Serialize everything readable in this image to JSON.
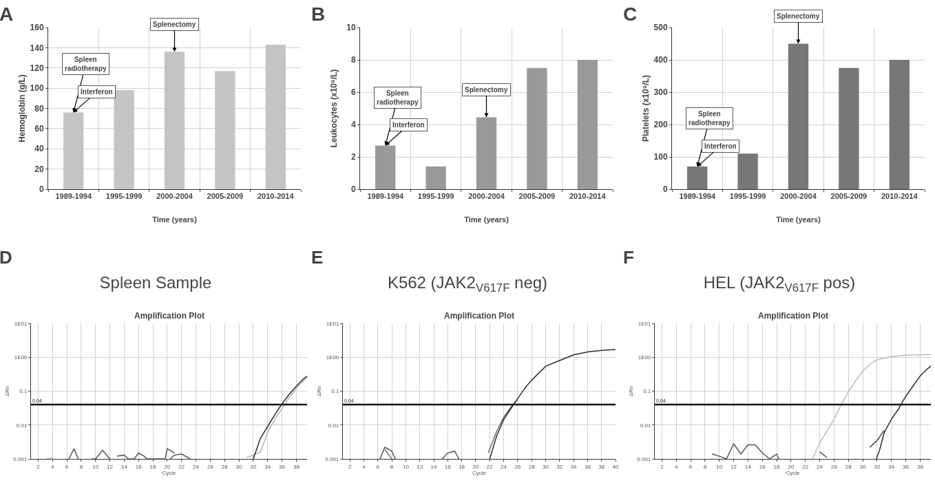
{
  "chart_data": [
    {
      "type": "bar",
      "ylabel": "Hemoglobin (g/L)",
      "xlabel": "Time (years)",
      "categories": [
        "1989-1994",
        "1995-1999",
        "2000-2004",
        "2005-2009",
        "2010-2014"
      ],
      "values": [
        76,
        98,
        136,
        117,
        143
      ],
      "color": "#c4c4c4",
      "ylim": [
        0,
        160
      ],
      "yticks": [
        0,
        20,
        40,
        60,
        80,
        100,
        120,
        140,
        160
      ],
      "grid": true,
      "annotations": [
        "A",
        {
          "text": "Spleen radiotherapy",
          "x": "1989-1994",
          "y": 76
        },
        {
          "text": "Interferon",
          "x": "1989-1994",
          "y": 76
        },
        {
          "text": "Splenectomy",
          "x": "2000-2004",
          "y": 136
        }
      ]
    },
    {
      "type": "bar",
      "ylabel": "Leukocytes (x10⁹/L)",
      "xlabel": "Time (years)",
      "categories": [
        "1989-1994",
        "1995-1999",
        "2000-2004",
        "2005-2009",
        "2010-2014"
      ],
      "values": [
        2.7,
        1.4,
        4.45,
        7.5,
        8
      ],
      "color": "#999999",
      "ylim": [
        0,
        10
      ],
      "yticks": [
        0,
        2,
        4,
        6,
        8,
        10
      ],
      "grid": true,
      "annotations": [
        "B",
        {
          "text": "Spleen radiotherapy",
          "x": "1989-1994",
          "y": 2.7
        },
        {
          "text": "Interferon",
          "x": "1989-1994",
          "y": 2.7
        },
        {
          "text": "Splenectomy",
          "x": "2000-2004",
          "y": 4.45
        }
      ]
    },
    {
      "type": "bar",
      "ylabel": "Platelets (x10⁹/L)",
      "xlabel": "Time (years)",
      "categories": [
        "1989-1994",
        "1995-1999",
        "2000-2004",
        "2005-2009",
        "2010-2014"
      ],
      "values": [
        70,
        110,
        450,
        375,
        400
      ],
      "color": "#777777",
      "ylim": [
        0,
        500
      ],
      "yticks": [
        0,
        100,
        200,
        300,
        400,
        500
      ],
      "grid": true,
      "annotations": [
        "C",
        {
          "text": "Spleen radiotherapy",
          "x": "1989-1994",
          "y": 70
        },
        {
          "text": "Interferon",
          "x": "1989-1994",
          "y": 70
        },
        {
          "text": "Splenectomy",
          "x": "2000-2004",
          "y": 450
        }
      ]
    },
    {
      "type": "line",
      "title": "Spleen Sample",
      "subtitle": "Amplification Plot",
      "xlabel": "Cycle",
      "ylabel": "ΔRn",
      "log": true,
      "grid": true,
      "annotations": [
        "D"
      ],
      "xlim": [
        1,
        39.5
      ],
      "xticks": [
        2,
        4,
        6,
        8,
        10,
        12,
        14,
        16,
        18,
        20,
        22,
        24,
        26,
        28,
        30,
        32,
        34,
        36,
        38
      ],
      "ylim": [
        0.001,
        10
      ],
      "yticks": [
        {
          "value": 0.001,
          "label": "0.001"
        },
        {
          "value": 0.01,
          "label": "0.01"
        },
        {
          "value": 0.1,
          "label": "0.1"
        },
        {
          "value": 1,
          "label": "1E00"
        },
        {
          "value": 10,
          "label": "1E01"
        }
      ],
      "ref_lines": [
        {
          "axis": "y",
          "value": 0.04,
          "label": "0.04",
          "color": "#111111"
        }
      ],
      "series": [
        {
          "color": "#555555",
          "x": [
            6.3,
            7,
            7.6,
            8,
            9.5,
            10,
            11,
            12,
            12.5,
            13,
            14,
            14.6,
            15.4,
            16,
            16.8,
            17.1,
            19.7,
            20,
            21
          ],
          "values": [
            0.001,
            0.002,
            0.001,
            null,
            0.001,
            0.001,
            0.0018,
            0.001,
            null,
            0.0012,
            0.0013,
            0.001,
            0.001,
            0.0015,
            0.0012,
            0.001,
            0.001,
            0.002,
            0.0015
          ]
        },
        {
          "color": "#555555",
          "x": [
            20.4,
            21,
            22,
            23.2
          ],
          "values": [
            0.001,
            0.0013,
            0.0014,
            0.001
          ]
        },
        {
          "color": "#b5b5b5",
          "x": [
            3.2,
            4,
            4.1,
            31,
            32,
            33,
            34,
            35,
            36,
            37,
            38,
            39,
            39.5
          ],
          "values": [
            0.001,
            0.0011,
            null,
            0.0011,
            0.0013,
            0.0016,
            0.006,
            0.015,
            0.03,
            0.065,
            0.12,
            0.2,
            0.26
          ]
        },
        {
          "color": "#2b2b2b",
          "x": [
            32,
            33,
            34,
            35,
            36,
            37,
            38,
            39,
            39.5
          ],
          "values": [
            0.001,
            0.0041,
            0.009,
            0.02,
            0.042,
            0.08,
            0.14,
            0.23,
            0.28
          ]
        }
      ]
    },
    {
      "type": "line",
      "title": "K562 (JAK2$_{V617F}$ neg)",
      "subtitle": "Amplification Plot",
      "xlabel": "Cycle",
      "ylabel": "ΔRn",
      "log": true,
      "grid": true,
      "annotations": [
        "E"
      ],
      "xlim": [
        1,
        40
      ],
      "xticks": [
        2,
        4,
        6,
        8,
        10,
        12,
        14,
        16,
        18,
        20,
        22,
        24,
        26,
        28,
        30,
        32,
        34,
        36,
        38,
        40
      ],
      "ylim": [
        0.001,
        10
      ],
      "yticks": [
        {
          "value": 0.001,
          "label": "0.001"
        },
        {
          "value": 0.01,
          "label": "0.01"
        },
        {
          "value": 0.1,
          "label": "0.1"
        },
        {
          "value": 1,
          "label": "1E00"
        },
        {
          "value": 10,
          "label": "1E01"
        }
      ],
      "ref_lines": [
        {
          "axis": "y",
          "value": 0.04,
          "label": "0.04",
          "color": "#111111"
        }
      ],
      "series": [
        {
          "color": "#555555",
          "x": [
            6.3,
            7,
            8,
            8.5,
            8.6,
            15.2,
            16,
            17,
            17.6
          ],
          "values": [
            0.001,
            0.0022,
            0.0017,
            0.001,
            null,
            0.001,
            0.0015,
            0.0017,
            0.001
          ]
        },
        {
          "color": "#777777",
          "x": [
            7,
            8
          ],
          "values": [
            0.0019,
            0.001
          ]
        },
        {
          "color": "#6a6a6a",
          "x": [
            21.8,
            23,
            24,
            25,
            26
          ],
          "values": [
            0.0015,
            0.0065,
            0.017,
            0.033,
            0.058
          ]
        },
        {
          "color": "#2b2b2b",
          "x": [
            22,
            23,
            24,
            25,
            26,
            27,
            28,
            30,
            32,
            34,
            36,
            38,
            40
          ],
          "values": [
            0.001,
            0.0048,
            0.0145,
            0.03,
            0.06,
            0.12,
            0.21,
            0.54,
            0.8,
            1.18,
            1.43,
            1.6,
            1.7
          ]
        }
      ]
    },
    {
      "type": "line",
      "title": "HEL (JAK2$_{V617F}$ pos)",
      "subtitle": "Amplification Plot",
      "xlabel": "Cycle",
      "ylabel": "ΔRn",
      "log": true,
      "grid": true,
      "annotations": [
        "F"
      ],
      "xlim": [
        1,
        39.5
      ],
      "xticks": [
        2,
        4,
        6,
        8,
        10,
        12,
        14,
        16,
        18,
        20,
        22,
        24,
        26,
        28,
        30,
        32,
        34,
        36,
        38
      ],
      "ylim": [
        0.001,
        10
      ],
      "yticks": [
        {
          "value": 0.001,
          "label": "0.001"
        },
        {
          "value": 0.01,
          "label": "0.01"
        },
        {
          "value": 0.1,
          "label": "0.1"
        },
        {
          "value": 1,
          "label": "1E00"
        },
        {
          "value": 10,
          "label": "1E01"
        }
      ],
      "ref_lines": [
        {
          "axis": "y",
          "value": 0.04,
          "label": "0.04",
          "color": "#111111"
        }
      ],
      "series": [
        {
          "color": "#555555",
          "x": [
            9,
            10,
            11,
            12,
            13,
            14,
            15,
            16,
            17,
            18,
            18.3
          ],
          "values": [
            0.0014,
            0.0012,
            0.001,
            0.0028,
            0.0014,
            0.0026,
            0.0026,
            0.0015,
            0.001,
            0.0014,
            0.001
          ]
        },
        {
          "color": "#555555",
          "x": [
            24,
            25
          ],
          "values": [
            0.0016,
            0.0011
          ]
        },
        {
          "color": "#bbbbbb",
          "x": [
            23,
            24,
            25,
            26,
            27,
            28,
            29,
            30,
            31,
            32,
            34,
            36,
            39.5
          ],
          "values": [
            0.001,
            0.003,
            0.0066,
            0.015,
            0.04,
            0.096,
            0.2,
            0.39,
            0.62,
            0.85,
            1.05,
            1.15,
            1.2
          ]
        },
        {
          "color": "#444444",
          "x": [
            31,
            32,
            33
          ],
          "values": [
            0.0022,
            0.0035,
            0.007
          ]
        },
        {
          "color": "#2b2b2b",
          "x": [
            31.9,
            32.3,
            33,
            34,
            35,
            35.3,
            36,
            37,
            38,
            39,
            39.5
          ],
          "values": [
            0.001,
            0.0017,
            0.006,
            0.015,
            0.03,
            0.04,
            0.07,
            0.14,
            0.28,
            0.45,
            0.55
          ]
        }
      ]
    }
  ]
}
